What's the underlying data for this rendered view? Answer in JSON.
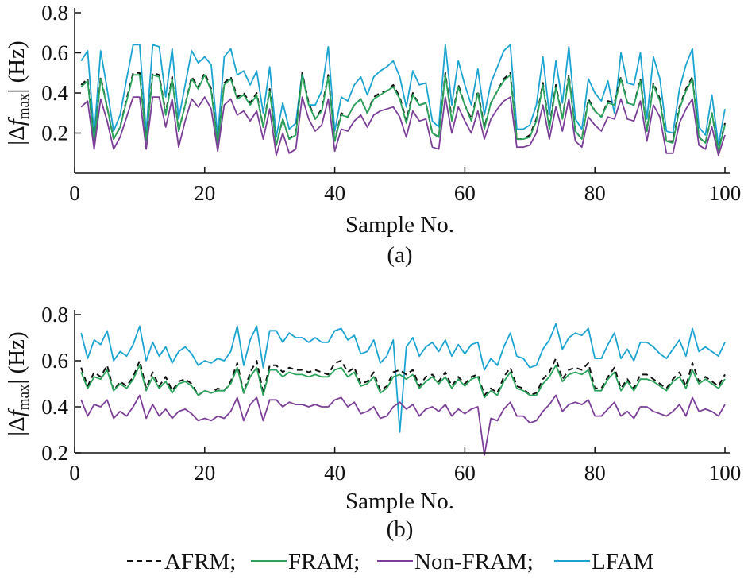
{
  "chart_data": [
    {
      "type": "line",
      "caption": "(a)",
      "xlabel": "Sample No.",
      "ylabel_prefix": "|Δ",
      "ylabel_f": "f",
      "ylabel_sub": "max",
      "ylabel_suffix": "| (Hz)",
      "xlim": [
        0,
        100
      ],
      "ylim": [
        0.0,
        0.8
      ],
      "xticks": [
        0,
        20,
        40,
        60,
        80,
        100
      ],
      "xtick_labels": [
        "0",
        "20",
        "40",
        "60",
        "80",
        "100"
      ],
      "yticks": [
        0.2,
        0.4,
        0.6,
        0.8
      ],
      "ytick_labels": [
        "0.2",
        "0.4",
        "0.6",
        "0.8"
      ],
      "x": [
        1,
        2,
        3,
        4,
        5,
        6,
        7,
        8,
        9,
        10,
        11,
        12,
        13,
        14,
        15,
        16,
        17,
        18,
        19,
        20,
        21,
        22,
        23,
        24,
        25,
        26,
        27,
        28,
        29,
        30,
        31,
        32,
        33,
        34,
        35,
        36,
        37,
        38,
        39,
        40,
        41,
        42,
        43,
        44,
        45,
        46,
        47,
        48,
        49,
        50,
        51,
        52,
        53,
        54,
        55,
        56,
        57,
        58,
        59,
        60,
        61,
        62,
        63,
        64,
        65,
        66,
        67,
        68,
        69,
        70,
        71,
        72,
        73,
        74,
        75,
        76,
        77,
        78,
        79,
        80,
        81,
        82,
        83,
        84,
        85,
        86,
        87,
        88,
        89,
        90,
        91,
        92,
        93,
        94,
        95,
        96,
        97,
        98,
        99,
        100
      ],
      "series": [
        {
          "name": "LFAM",
          "color": "#1BA3D1",
          "dash": "none",
          "values": [
            0.56,
            0.61,
            0.19,
            0.61,
            0.42,
            0.21,
            0.29,
            0.47,
            0.64,
            0.64,
            0.2,
            0.64,
            0.63,
            0.38,
            0.62,
            0.27,
            0.44,
            0.61,
            0.55,
            0.58,
            0.54,
            0.18,
            0.58,
            0.62,
            0.49,
            0.51,
            0.44,
            0.51,
            0.3,
            0.53,
            0.18,
            0.35,
            0.22,
            0.25,
            0.5,
            0.34,
            0.34,
            0.41,
            0.63,
            0.21,
            0.38,
            0.36,
            0.44,
            0.48,
            0.39,
            0.48,
            0.51,
            0.53,
            0.56,
            0.48,
            0.33,
            0.51,
            0.44,
            0.45,
            0.26,
            0.23,
            0.64,
            0.34,
            0.56,
            0.44,
            0.34,
            0.52,
            0.29,
            0.45,
            0.53,
            0.61,
            0.64,
            0.22,
            0.22,
            0.24,
            0.34,
            0.58,
            0.29,
            0.56,
            0.35,
            0.63,
            0.27,
            0.22,
            0.47,
            0.4,
            0.36,
            0.46,
            0.3,
            0.6,
            0.45,
            0.44,
            0.6,
            0.27,
            0.58,
            0.47,
            0.21,
            0.2,
            0.42,
            0.54,
            0.62,
            0.23,
            0.19,
            0.39,
            0.14,
            0.32
          ]
        },
        {
          "name": "AFRM",
          "color": "#111111",
          "dash": "7,5",
          "values": [
            0.44,
            0.47,
            0.15,
            0.48,
            0.33,
            0.17,
            0.23,
            0.37,
            0.5,
            0.5,
            0.16,
            0.5,
            0.49,
            0.3,
            0.48,
            0.21,
            0.34,
            0.48,
            0.43,
            0.5,
            0.42,
            0.14,
            0.45,
            0.48,
            0.38,
            0.4,
            0.35,
            0.4,
            0.23,
            0.42,
            0.14,
            0.27,
            0.17,
            0.2,
            0.5,
            0.35,
            0.27,
            0.32,
            0.49,
            0.16,
            0.3,
            0.28,
            0.34,
            0.37,
            0.3,
            0.38,
            0.4,
            0.41,
            0.44,
            0.38,
            0.26,
            0.4,
            0.34,
            0.35,
            0.2,
            0.18,
            0.5,
            0.27,
            0.44,
            0.34,
            0.27,
            0.41,
            0.23,
            0.35,
            0.41,
            0.47,
            0.5,
            0.17,
            0.17,
            0.19,
            0.27,
            0.45,
            0.23,
            0.44,
            0.27,
            0.49,
            0.21,
            0.17,
            0.37,
            0.31,
            0.28,
            0.36,
            0.35,
            0.48,
            0.35,
            0.34,
            0.47,
            0.21,
            0.45,
            0.37,
            0.16,
            0.16,
            0.33,
            0.42,
            0.48,
            0.18,
            0.15,
            0.3,
            0.11,
            0.25
          ]
        },
        {
          "name": "FRAM",
          "color": "#2AA35B",
          "dash": "none",
          "values": [
            0.43,
            0.46,
            0.15,
            0.47,
            0.33,
            0.17,
            0.23,
            0.36,
            0.49,
            0.49,
            0.16,
            0.49,
            0.48,
            0.29,
            0.47,
            0.21,
            0.34,
            0.47,
            0.42,
            0.49,
            0.41,
            0.14,
            0.44,
            0.47,
            0.37,
            0.39,
            0.34,
            0.39,
            0.23,
            0.41,
            0.14,
            0.27,
            0.17,
            0.19,
            0.49,
            0.34,
            0.27,
            0.31,
            0.48,
            0.16,
            0.29,
            0.28,
            0.34,
            0.37,
            0.3,
            0.37,
            0.39,
            0.41,
            0.43,
            0.37,
            0.25,
            0.39,
            0.34,
            0.35,
            0.2,
            0.18,
            0.49,
            0.26,
            0.43,
            0.34,
            0.26,
            0.4,
            0.22,
            0.35,
            0.41,
            0.46,
            0.49,
            0.17,
            0.17,
            0.18,
            0.26,
            0.44,
            0.22,
            0.43,
            0.27,
            0.48,
            0.21,
            0.17,
            0.36,
            0.31,
            0.28,
            0.35,
            0.34,
            0.47,
            0.35,
            0.34,
            0.46,
            0.21,
            0.44,
            0.36,
            0.16,
            0.15,
            0.32,
            0.41,
            0.47,
            0.18,
            0.15,
            0.3,
            0.11,
            0.24
          ]
        },
        {
          "name": "Non-FRAM",
          "color": "#7B3F98",
          "dash": "none",
          "values": [
            0.33,
            0.36,
            0.12,
            0.37,
            0.26,
            0.12,
            0.18,
            0.28,
            0.38,
            0.38,
            0.12,
            0.38,
            0.38,
            0.23,
            0.37,
            0.13,
            0.26,
            0.37,
            0.33,
            0.38,
            0.32,
            0.11,
            0.34,
            0.37,
            0.29,
            0.31,
            0.26,
            0.31,
            0.17,
            0.32,
            0.09,
            0.2,
            0.1,
            0.12,
            0.38,
            0.27,
            0.21,
            0.24,
            0.37,
            0.11,
            0.22,
            0.21,
            0.26,
            0.29,
            0.23,
            0.29,
            0.31,
            0.32,
            0.33,
            0.28,
            0.18,
            0.31,
            0.26,
            0.27,
            0.13,
            0.12,
            0.38,
            0.2,
            0.33,
            0.26,
            0.2,
            0.31,
            0.17,
            0.27,
            0.32,
            0.36,
            0.38,
            0.13,
            0.13,
            0.14,
            0.2,
            0.34,
            0.17,
            0.33,
            0.21,
            0.37,
            0.16,
            0.13,
            0.28,
            0.24,
            0.21,
            0.28,
            0.27,
            0.37,
            0.27,
            0.26,
            0.36,
            0.16,
            0.34,
            0.28,
            0.1,
            0.1,
            0.25,
            0.32,
            0.37,
            0.14,
            0.12,
            0.23,
            0.09,
            0.19
          ]
        }
      ]
    },
    {
      "type": "line",
      "caption": "(b)",
      "xlabel": "Sample No.",
      "ylabel_prefix": "|Δ",
      "ylabel_f": "f",
      "ylabel_sub": "max",
      "ylabel_suffix": "| (Hz)",
      "xlim": [
        0,
        100
      ],
      "ylim": [
        0.2,
        0.8
      ],
      "xticks": [
        0,
        20,
        40,
        60,
        80,
        100
      ],
      "xtick_labels": [
        "0",
        "20",
        "40",
        "60",
        "80",
        "100"
      ],
      "yticks": [
        0.2,
        0.4,
        0.6,
        0.8
      ],
      "ytick_labels": [
        "0.2",
        "0.4",
        "0.6",
        "0.8"
      ],
      "x": [
        1,
        2,
        3,
        4,
        5,
        6,
        7,
        8,
        9,
        10,
        11,
        12,
        13,
        14,
        15,
        16,
        17,
        18,
        19,
        20,
        21,
        22,
        23,
        24,
        25,
        26,
        27,
        28,
        29,
        30,
        31,
        32,
        33,
        34,
        35,
        36,
        37,
        38,
        39,
        40,
        41,
        42,
        43,
        44,
        45,
        46,
        47,
        48,
        49,
        50,
        51,
        52,
        53,
        54,
        55,
        56,
        57,
        58,
        59,
        60,
        61,
        62,
        63,
        64,
        65,
        66,
        67,
        68,
        69,
        70,
        71,
        72,
        73,
        74,
        75,
        76,
        77,
        78,
        79,
        80,
        81,
        82,
        83,
        84,
        85,
        86,
        87,
        88,
        89,
        90,
        91,
        92,
        93,
        94,
        95,
        96,
        97,
        98,
        99,
        100
      ],
      "series": [
        {
          "name": "LFAM",
          "color": "#1BA3D1",
          "dash": "none",
          "values": [
            0.72,
            0.61,
            0.69,
            0.67,
            0.73,
            0.6,
            0.64,
            0.62,
            0.67,
            0.75,
            0.6,
            0.68,
            0.62,
            0.66,
            0.59,
            0.64,
            0.66,
            0.63,
            0.58,
            0.6,
            0.59,
            0.61,
            0.6,
            0.64,
            0.75,
            0.58,
            0.69,
            0.75,
            0.57,
            0.73,
            0.73,
            0.68,
            0.72,
            0.7,
            0.7,
            0.68,
            0.7,
            0.68,
            0.68,
            0.73,
            0.74,
            0.69,
            0.71,
            0.63,
            0.64,
            0.69,
            0.59,
            0.62,
            0.69,
            0.29,
            0.66,
            0.7,
            0.62,
            0.66,
            0.68,
            0.64,
            0.69,
            0.62,
            0.67,
            0.63,
            0.67,
            0.68,
            0.56,
            0.61,
            0.58,
            0.66,
            0.72,
            0.62,
            0.61,
            0.57,
            0.58,
            0.65,
            0.69,
            0.76,
            0.65,
            0.7,
            0.72,
            0.71,
            0.74,
            0.61,
            0.61,
            0.67,
            0.72,
            0.61,
            0.65,
            0.6,
            0.68,
            0.68,
            0.66,
            0.63,
            0.61,
            0.65,
            0.69,
            0.62,
            0.74,
            0.64,
            0.66,
            0.64,
            0.62,
            0.68
          ]
        },
        {
          "name": "AFRM",
          "color": "#111111",
          "dash": "7,5",
          "values": [
            0.57,
            0.49,
            0.55,
            0.53,
            0.58,
            0.47,
            0.51,
            0.49,
            0.53,
            0.6,
            0.48,
            0.55,
            0.49,
            0.53,
            0.47,
            0.51,
            0.52,
            0.5,
            0.45,
            0.47,
            0.46,
            0.48,
            0.47,
            0.51,
            0.59,
            0.46,
            0.55,
            0.6,
            0.46,
            0.58,
            0.58,
            0.55,
            0.57,
            0.56,
            0.56,
            0.55,
            0.56,
            0.55,
            0.54,
            0.59,
            0.6,
            0.55,
            0.57,
            0.5,
            0.51,
            0.55,
            0.47,
            0.49,
            0.55,
            0.56,
            0.54,
            0.56,
            0.49,
            0.53,
            0.54,
            0.51,
            0.55,
            0.49,
            0.53,
            0.5,
            0.53,
            0.54,
            0.45,
            0.48,
            0.46,
            0.53,
            0.57,
            0.49,
            0.48,
            0.45,
            0.46,
            0.52,
            0.55,
            0.61,
            0.52,
            0.56,
            0.57,
            0.56,
            0.59,
            0.48,
            0.48,
            0.53,
            0.57,
            0.48,
            0.52,
            0.48,
            0.54,
            0.54,
            0.52,
            0.5,
            0.48,
            0.52,
            0.55,
            0.49,
            0.59,
            0.51,
            0.53,
            0.51,
            0.49,
            0.54
          ]
        },
        {
          "name": "FRAM",
          "color": "#2AA35B",
          "dash": "none",
          "values": [
            0.55,
            0.48,
            0.53,
            0.52,
            0.56,
            0.47,
            0.5,
            0.48,
            0.52,
            0.58,
            0.47,
            0.53,
            0.48,
            0.51,
            0.46,
            0.5,
            0.51,
            0.49,
            0.45,
            0.47,
            0.46,
            0.47,
            0.47,
            0.5,
            0.57,
            0.46,
            0.53,
            0.57,
            0.45,
            0.56,
            0.56,
            0.53,
            0.55,
            0.54,
            0.54,
            0.53,
            0.54,
            0.53,
            0.53,
            0.56,
            0.57,
            0.53,
            0.55,
            0.49,
            0.5,
            0.53,
            0.46,
            0.48,
            0.53,
            0.54,
            0.52,
            0.54,
            0.48,
            0.51,
            0.53,
            0.5,
            0.53,
            0.48,
            0.52,
            0.49,
            0.52,
            0.53,
            0.44,
            0.47,
            0.45,
            0.51,
            0.55,
            0.48,
            0.47,
            0.45,
            0.45,
            0.5,
            0.53,
            0.58,
            0.51,
            0.54,
            0.55,
            0.54,
            0.56,
            0.47,
            0.47,
            0.52,
            0.55,
            0.47,
            0.51,
            0.47,
            0.52,
            0.52,
            0.51,
            0.49,
            0.47,
            0.51,
            0.53,
            0.48,
            0.56,
            0.5,
            0.52,
            0.5,
            0.48,
            0.52
          ]
        },
        {
          "name": "Non-FRAM",
          "color": "#7B3F98",
          "dash": "none",
          "values": [
            0.43,
            0.36,
            0.41,
            0.4,
            0.43,
            0.35,
            0.38,
            0.36,
            0.4,
            0.45,
            0.35,
            0.41,
            0.36,
            0.39,
            0.35,
            0.38,
            0.39,
            0.37,
            0.34,
            0.35,
            0.34,
            0.36,
            0.35,
            0.38,
            0.44,
            0.34,
            0.41,
            0.44,
            0.34,
            0.43,
            0.43,
            0.4,
            0.42,
            0.41,
            0.41,
            0.4,
            0.41,
            0.4,
            0.4,
            0.43,
            0.44,
            0.4,
            0.42,
            0.37,
            0.38,
            0.4,
            0.35,
            0.36,
            0.4,
            0.42,
            0.39,
            0.41,
            0.36,
            0.39,
            0.4,
            0.38,
            0.41,
            0.36,
            0.39,
            0.37,
            0.39,
            0.4,
            0.19,
            0.35,
            0.34,
            0.39,
            0.42,
            0.36,
            0.36,
            0.33,
            0.34,
            0.38,
            0.41,
            0.45,
            0.38,
            0.41,
            0.42,
            0.41,
            0.43,
            0.36,
            0.36,
            0.39,
            0.42,
            0.36,
            0.38,
            0.35,
            0.4,
            0.4,
            0.38,
            0.37,
            0.36,
            0.38,
            0.41,
            0.36,
            0.44,
            0.38,
            0.39,
            0.38,
            0.36,
            0.41
          ]
        }
      ]
    }
  ],
  "legend": {
    "items": [
      {
        "label": "AFRM;",
        "color": "#111111",
        "dash": "7,5"
      },
      {
        "label": "FRAM;",
        "color": "#2AA35B",
        "dash": "none"
      },
      {
        "label": "Non-FRAM;",
        "color": "#7B3F98",
        "dash": "none"
      },
      {
        "label": "LFAM",
        "color": "#1BA3D1",
        "dash": "none"
      }
    ]
  }
}
